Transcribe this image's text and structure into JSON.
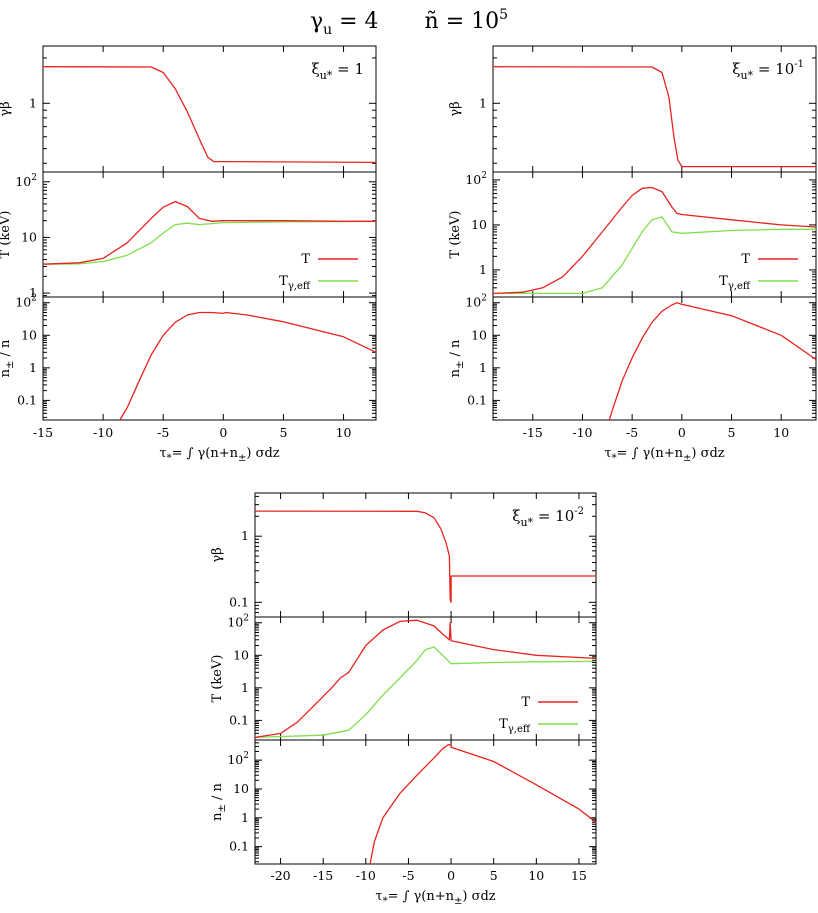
{
  "figure_title": {
    "gamma_symbol": "γ",
    "gamma_sub": "u",
    "gamma_value": " = 4",
    "n_symbol": "ñ",
    "n_eq": " = 10",
    "n_exp": "5"
  },
  "legend_labels": {
    "T": "T",
    "Tgamma_main": "T",
    "Tgamma_sub": "γ,eff"
  },
  "axis_labels": {
    "gb": "γβ",
    "T": "T (keV)",
    "npm_main": "n",
    "npm_sub": "±",
    "npm_rest": " / n",
    "x_prefix": "τ",
    "x_star": "*",
    "x_mid": "= ∫ γ(n+n",
    "x_sub": "±",
    "x_end": ") σdz"
  },
  "colors": {
    "T": "#e8231d",
    "Tgamma": "#7ee04c",
    "axis": "#000000"
  },
  "chart_data": [
    {
      "type": "line",
      "panel": "top-left",
      "annotation": {
        "symbol": "ξ",
        "sub": "u*",
        "eq": " = 1",
        "exp": ""
      },
      "xlim": [
        -15,
        12.7
      ],
      "xticks": [
        -15,
        -10,
        -5,
        0,
        5,
        10
      ],
      "xtick_labels": [
        "-15",
        "-10",
        "-5",
        "0",
        "5",
        "10"
      ],
      "gb": {
        "scale": "log",
        "ylim": [
          0.35,
          2.4
        ],
        "ticks": [
          {
            "v": 1,
            "label": "1"
          }
        ],
        "x": [
          -15,
          -6,
          -5,
          -4,
          -3,
          -2,
          -1.3,
          -0.8,
          0,
          12.7
        ],
        "y": [
          1.75,
          1.74,
          1.6,
          1.25,
          0.88,
          0.58,
          0.44,
          0.41,
          0.41,
          0.405
        ]
      },
      "T": {
        "scale": "log",
        "ylim": [
          0.85,
          150
        ],
        "ticks": [
          {
            "v": 1,
            "label": "1"
          },
          {
            "v": 10,
            "label": "10"
          },
          {
            "v": 100,
            "label": "10",
            "exp": "2"
          }
        ],
        "T_x": [
          -15,
          -12,
          -10,
          -8,
          -6,
          -5,
          -4,
          -3,
          -2,
          -1,
          0,
          5,
          10,
          12.7
        ],
        "T_y": [
          3.3,
          3.5,
          4.2,
          8,
          22,
          35,
          44,
          36,
          22,
          19.5,
          20,
          20,
          19.5,
          19.5
        ],
        "Tg_x": [
          -15,
          -12,
          -10,
          -8,
          -6,
          -5,
          -4,
          -3,
          -2,
          0,
          5,
          12.7
        ],
        "Tg_y": [
          3.3,
          3.35,
          3.7,
          4.8,
          8,
          12,
          17,
          18,
          17,
          18.5,
          19,
          19.5
        ]
      },
      "n": {
        "scale": "log",
        "ylim": [
          0.025,
          150
        ],
        "ticks": [
          {
            "v": 0.1,
            "label": "0.1"
          },
          {
            "v": 1,
            "label": "1"
          },
          {
            "v": 10,
            "label": "10"
          },
          {
            "v": 100,
            "label": "10",
            "exp": "2"
          }
        ],
        "x": [
          -8.6,
          -8,
          -7,
          -6,
          -5,
          -4,
          -3,
          -2,
          -1,
          0,
          0.2,
          2,
          5,
          10,
          12.7
        ],
        "y": [
          0.025,
          0.06,
          0.4,
          2.5,
          10,
          25,
          42,
          50,
          50,
          47,
          50,
          42,
          26,
          9,
          3
        ]
      }
    },
    {
      "type": "line",
      "panel": "top-right",
      "annotation": {
        "symbol": "ξ",
        "sub": "u*",
        "eq": " = 10",
        "exp": "-1"
      },
      "xlim": [
        -19,
        13.5
      ],
      "xticks": [
        -15,
        -10,
        -5,
        0,
        5,
        10
      ],
      "xtick_labels": [
        "-15",
        "-10",
        "-5",
        "0",
        "5",
        "10"
      ],
      "gb": {
        "scale": "log",
        "ylim": [
          0.35,
          2.4
        ],
        "ticks": [
          {
            "v": 1,
            "label": "1"
          }
        ],
        "x": [
          -19,
          -3,
          -2,
          -1.3,
          -0.8,
          -0.4,
          0,
          13.5
        ],
        "y": [
          1.75,
          1.74,
          1.6,
          1.1,
          0.6,
          0.42,
          0.38,
          0.38
        ]
      },
      "T": {
        "scale": "log",
        "ylim": [
          0.25,
          150
        ],
        "ticks": [
          {
            "v": 1,
            "label": "1"
          },
          {
            "v": 10,
            "label": "10"
          },
          {
            "v": 100,
            "label": "10",
            "exp": "2"
          }
        ],
        "T_x": [
          -19,
          -16,
          -14,
          -12,
          -10,
          -8,
          -6,
          -5,
          -4,
          -3,
          -2,
          -1,
          -0.5,
          0,
          5,
          10,
          13.5
        ],
        "T_y": [
          0.3,
          0.32,
          0.4,
          0.7,
          2,
          7,
          25,
          45,
          65,
          68,
          55,
          25,
          18,
          17,
          13,
          10,
          9
        ],
        "Tg_x": [
          -19,
          -10,
          -8,
          -6,
          -5,
          -4,
          -3,
          -2,
          -1,
          0,
          5,
          10,
          13.5
        ],
        "Tg_y": [
          0.3,
          0.3,
          0.4,
          1.3,
          3,
          7,
          13,
          15,
          7,
          6.5,
          7.5,
          8,
          8
        ]
      },
      "n": {
        "scale": "log",
        "ylim": [
          0.025,
          150
        ],
        "ticks": [
          {
            "v": 0.1,
            "label": "0.1"
          },
          {
            "v": 1,
            "label": "1"
          },
          {
            "v": 10,
            "label": "10"
          },
          {
            "v": 100,
            "label": "10",
            "exp": "2"
          }
        ],
        "x": [
          -7.3,
          -7,
          -6,
          -5,
          -4,
          -3,
          -2,
          -1,
          -0.5,
          0,
          5,
          10,
          13.5
        ],
        "y": [
          0.025,
          0.05,
          0.4,
          2,
          8,
          25,
          55,
          85,
          100,
          90,
          40,
          10,
          1.8
        ]
      }
    },
    {
      "type": "line",
      "panel": "bottom",
      "annotation": {
        "symbol": "ξ",
        "sub": "u*",
        "eq": " = 10",
        "exp": "-2"
      },
      "xlim": [
        -23,
        17
      ],
      "xticks": [
        -20,
        -15,
        -10,
        -5,
        0,
        5,
        10,
        15
      ],
      "xtick_labels": [
        "-20",
        "-15",
        "-10",
        "-5",
        "0",
        "5",
        "10",
        "15"
      ],
      "gb": {
        "scale": "log",
        "ylim": [
          0.06,
          4.5
        ],
        "ticks": [
          {
            "v": 0.1,
            "label": "0.1"
          },
          {
            "v": 1,
            "label": "1"
          }
        ],
        "x": [
          -23,
          -4,
          -3,
          -2,
          -1.2,
          -0.6,
          -0.2,
          -0.1,
          0,
          0,
          17
        ],
        "y": [
          2.4,
          2.38,
          2.25,
          1.9,
          1.3,
          0.8,
          0.5,
          0.11,
          0.1,
          0.25,
          0.25
        ]
      },
      "T": {
        "scale": "log",
        "ylim": [
          0.025,
          150
        ],
        "ticks": [
          {
            "v": 0.1,
            "label": "0.1"
          },
          {
            "v": 1,
            "label": "1"
          },
          {
            "v": 10,
            "label": "10"
          },
          {
            "v": 100,
            "label": "10",
            "exp": "2"
          }
        ],
        "T_x": [
          -23,
          -20,
          -18,
          -16,
          -14,
          -13,
          -12,
          -10,
          -8,
          -6,
          -4,
          -2,
          -1,
          -0.2,
          -0.1,
          0,
          0.3,
          5,
          10,
          17
        ],
        "T_y": [
          0.03,
          0.04,
          0.09,
          0.3,
          1,
          2,
          3,
          20,
          60,
          110,
          120,
          80,
          45,
          30,
          100,
          28,
          27,
          15,
          10,
          8
        ],
        "Tg_x": [
          -23,
          -15,
          -12,
          -10,
          -8,
          -6,
          -4,
          -3,
          -2,
          -1,
          0,
          5,
          10,
          17
        ],
        "Tg_y": [
          0.03,
          0.035,
          0.05,
          0.15,
          0.6,
          2,
          7,
          15,
          18,
          10,
          5.5,
          6,
          6.3,
          6.5
        ]
      },
      "n": {
        "scale": "log",
        "ylim": [
          0.025,
          500
        ],
        "ticks": [
          {
            "v": 0.1,
            "label": "0.1"
          },
          {
            "v": 1,
            "label": "1"
          },
          {
            "v": 10,
            "label": "10"
          },
          {
            "v": 100,
            "label": "10",
            "exp": "2"
          }
        ],
        "x": [
          -9.5,
          -9,
          -8,
          -6,
          -4,
          -2,
          -1,
          -0.3,
          0,
          0,
          5,
          10,
          15,
          17
        ],
        "y": [
          0.025,
          0.15,
          1,
          7,
          30,
          120,
          250,
          350,
          330,
          280,
          90,
          14,
          2,
          0.7
        ]
      }
    }
  ]
}
